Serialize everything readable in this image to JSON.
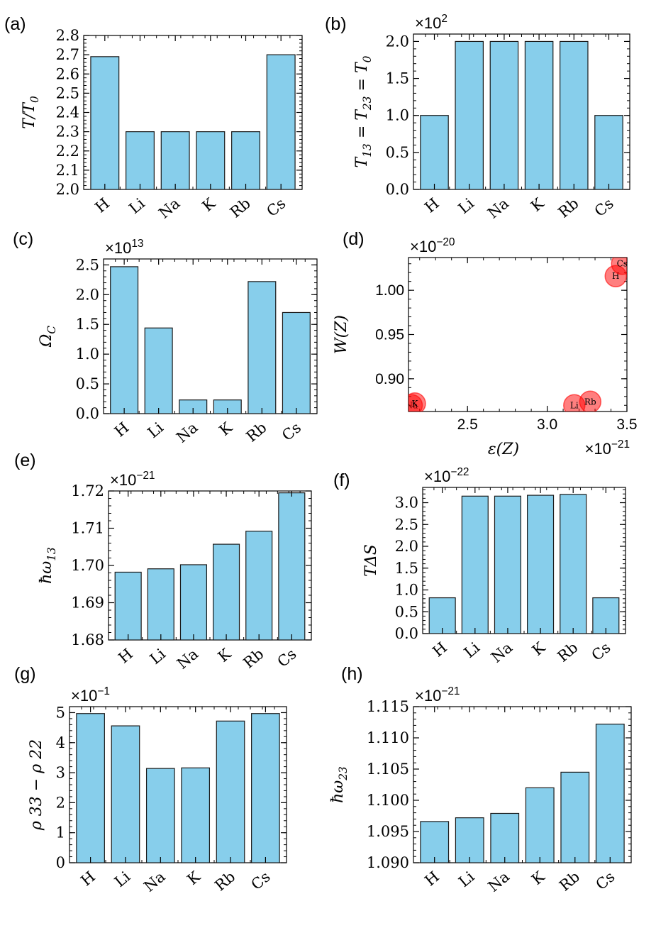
{
  "chart_data": [
    {
      "panel": "(a)",
      "type": "bar",
      "multiplier": "",
      "ylabel": "T/T_0",
      "xlabel": "",
      "categories": [
        "H",
        "Li",
        "Na",
        "K",
        "Rb",
        "Cs"
      ],
      "values": [
        2.69,
        2.3,
        2.3,
        2.3,
        2.3,
        2.7
      ],
      "ylim": [
        2.0,
        2.8
      ],
      "yticks": [
        2.0,
        2.1,
        2.2,
        2.3,
        2.4,
        2.5,
        2.6,
        2.7,
        2.8
      ],
      "ytick_labels": [
        "2.0",
        "2.1",
        "2.2",
        "2.3",
        "2.4",
        "2.5",
        "2.6",
        "2.7",
        "2.8"
      ]
    },
    {
      "panel": "(b)",
      "type": "bar",
      "multiplier": "×10^2",
      "ylabel": "T_13 = T_23 = T_0",
      "xlabel": "",
      "categories": [
        "H",
        "Li",
        "Na",
        "K",
        "Rb",
        "Cs"
      ],
      "values": [
        1.0,
        2.0,
        2.0,
        2.0,
        2.0,
        1.0
      ],
      "ylim": [
        0,
        2.1
      ],
      "yticks": [
        0,
        0.5,
        1.0,
        1.5,
        2.0
      ],
      "ytick_labels": [
        "0.0",
        "0.5",
        "1.0",
        "1.5",
        "2.0"
      ]
    },
    {
      "panel": "(c)",
      "type": "bar",
      "multiplier": "×10^13",
      "ylabel": "Ω_C",
      "xlabel": "",
      "categories": [
        "H",
        "Li",
        "Na",
        "K",
        "Rb",
        "Cs"
      ],
      "values": [
        2.47,
        1.44,
        0.23,
        0.23,
        2.22,
        1.7
      ],
      "ylim": [
        0,
        2.6
      ],
      "yticks": [
        0,
        0.5,
        1.0,
        1.5,
        2.0,
        2.5
      ],
      "ytick_labels": [
        "0.0",
        "0.5",
        "1.0",
        "1.5",
        "2.0",
        "2.5"
      ]
    },
    {
      "panel": "(d)",
      "type": "scatter",
      "multiplier": "×10^−20",
      "x_multiplier": "×10^−21",
      "ylabel": "W(Z)",
      "xlabel": "ε(Z)",
      "points": [
        {
          "label": "H",
          "x": 3.43,
          "y": 1.016
        },
        {
          "label": "Li",
          "x": 3.17,
          "y": 0.87
        },
        {
          "label": "Na",
          "x": 2.15,
          "y": 0.87
        },
        {
          "label": "K",
          "x": 2.17,
          "y": 0.872
        },
        {
          "label": "Rb",
          "x": 3.27,
          "y": 0.874
        },
        {
          "label": "Cs",
          "x": 3.47,
          "y": 1.03
        }
      ],
      "xlim": [
        2.13,
        3.5
      ],
      "ylim": [
        0.863,
        1.037
      ],
      "xticks": [
        2.5,
        3.0,
        3.5
      ],
      "xtick_labels": [
        "2.5",
        "3.0",
        "3.5"
      ],
      "yticks": [
        0.9,
        0.95,
        1.0
      ],
      "ytick_labels": [
        "0.90",
        "0.95",
        "1.00"
      ],
      "marker_color": "#ff0000"
    },
    {
      "panel": "(e)",
      "type": "bar",
      "multiplier": "×10^−21",
      "ylabel": "ħω_13",
      "xlabel": "",
      "categories": [
        "H",
        "Li",
        "Na",
        "K",
        "Rb",
        "Cs"
      ],
      "values": [
        1.6982,
        1.6991,
        1.7002,
        1.7057,
        1.7092,
        1.7195
      ],
      "ylim": [
        1.68,
        1.72
      ],
      "yticks": [
        1.68,
        1.69,
        1.7,
        1.71,
        1.72
      ],
      "ytick_labels": [
        "1.68",
        "1.69",
        "1.70",
        "1.71",
        "1.72"
      ]
    },
    {
      "panel": "(f)",
      "type": "bar",
      "multiplier": "×10^−22",
      "ylabel": "TΔS",
      "xlabel": "",
      "categories": [
        "H",
        "Li",
        "Na",
        "K",
        "Rb",
        "Cs"
      ],
      "values": [
        0.82,
        3.15,
        3.15,
        3.17,
        3.19,
        0.82
      ],
      "ylim": [
        0,
        3.35
      ],
      "yticks": [
        0,
        0.5,
        1.0,
        1.5,
        2.0,
        2.5,
        3.0
      ],
      "ytick_labels": [
        "0.0",
        "0.5",
        "1.0",
        "1.5",
        "2.0",
        "2.5",
        "3.0"
      ]
    },
    {
      "panel": "(g)",
      "type": "bar",
      "multiplier": "×10^−1",
      "ylabel": "ρ 33 − ρ 22",
      "xlabel": "",
      "categories": [
        "H",
        "Li",
        "Na",
        "K",
        "Rb",
        "Cs"
      ],
      "values": [
        4.97,
        4.56,
        3.14,
        3.16,
        4.72,
        4.97
      ],
      "ylim": [
        0,
        5.2
      ],
      "yticks": [
        0,
        1,
        2,
        3,
        4,
        5
      ],
      "ytick_labels": [
        "0",
        "1",
        "2",
        "3",
        "4",
        "5"
      ]
    },
    {
      "panel": "(h)",
      "type": "bar",
      "multiplier": "×10^−21",
      "ylabel": "ħω_23",
      "xlabel": "",
      "categories": [
        "H",
        "Li",
        "Na",
        "K",
        "Rb",
        "Cs"
      ],
      "values": [
        1.0966,
        1.0972,
        1.0979,
        1.102,
        1.1045,
        1.1122
      ],
      "ylim": [
        1.09,
        1.115
      ],
      "yticks": [
        1.09,
        1.095,
        1.1,
        1.105,
        1.11,
        1.115
      ],
      "ytick_labels": [
        "1.090",
        "1.095",
        "1.100",
        "1.105",
        "1.110",
        "1.115"
      ]
    }
  ],
  "colors": {
    "bar_fill": "#87ceeb",
    "bar_edge": "#1a1a1a",
    "marker": "#ff0000"
  }
}
